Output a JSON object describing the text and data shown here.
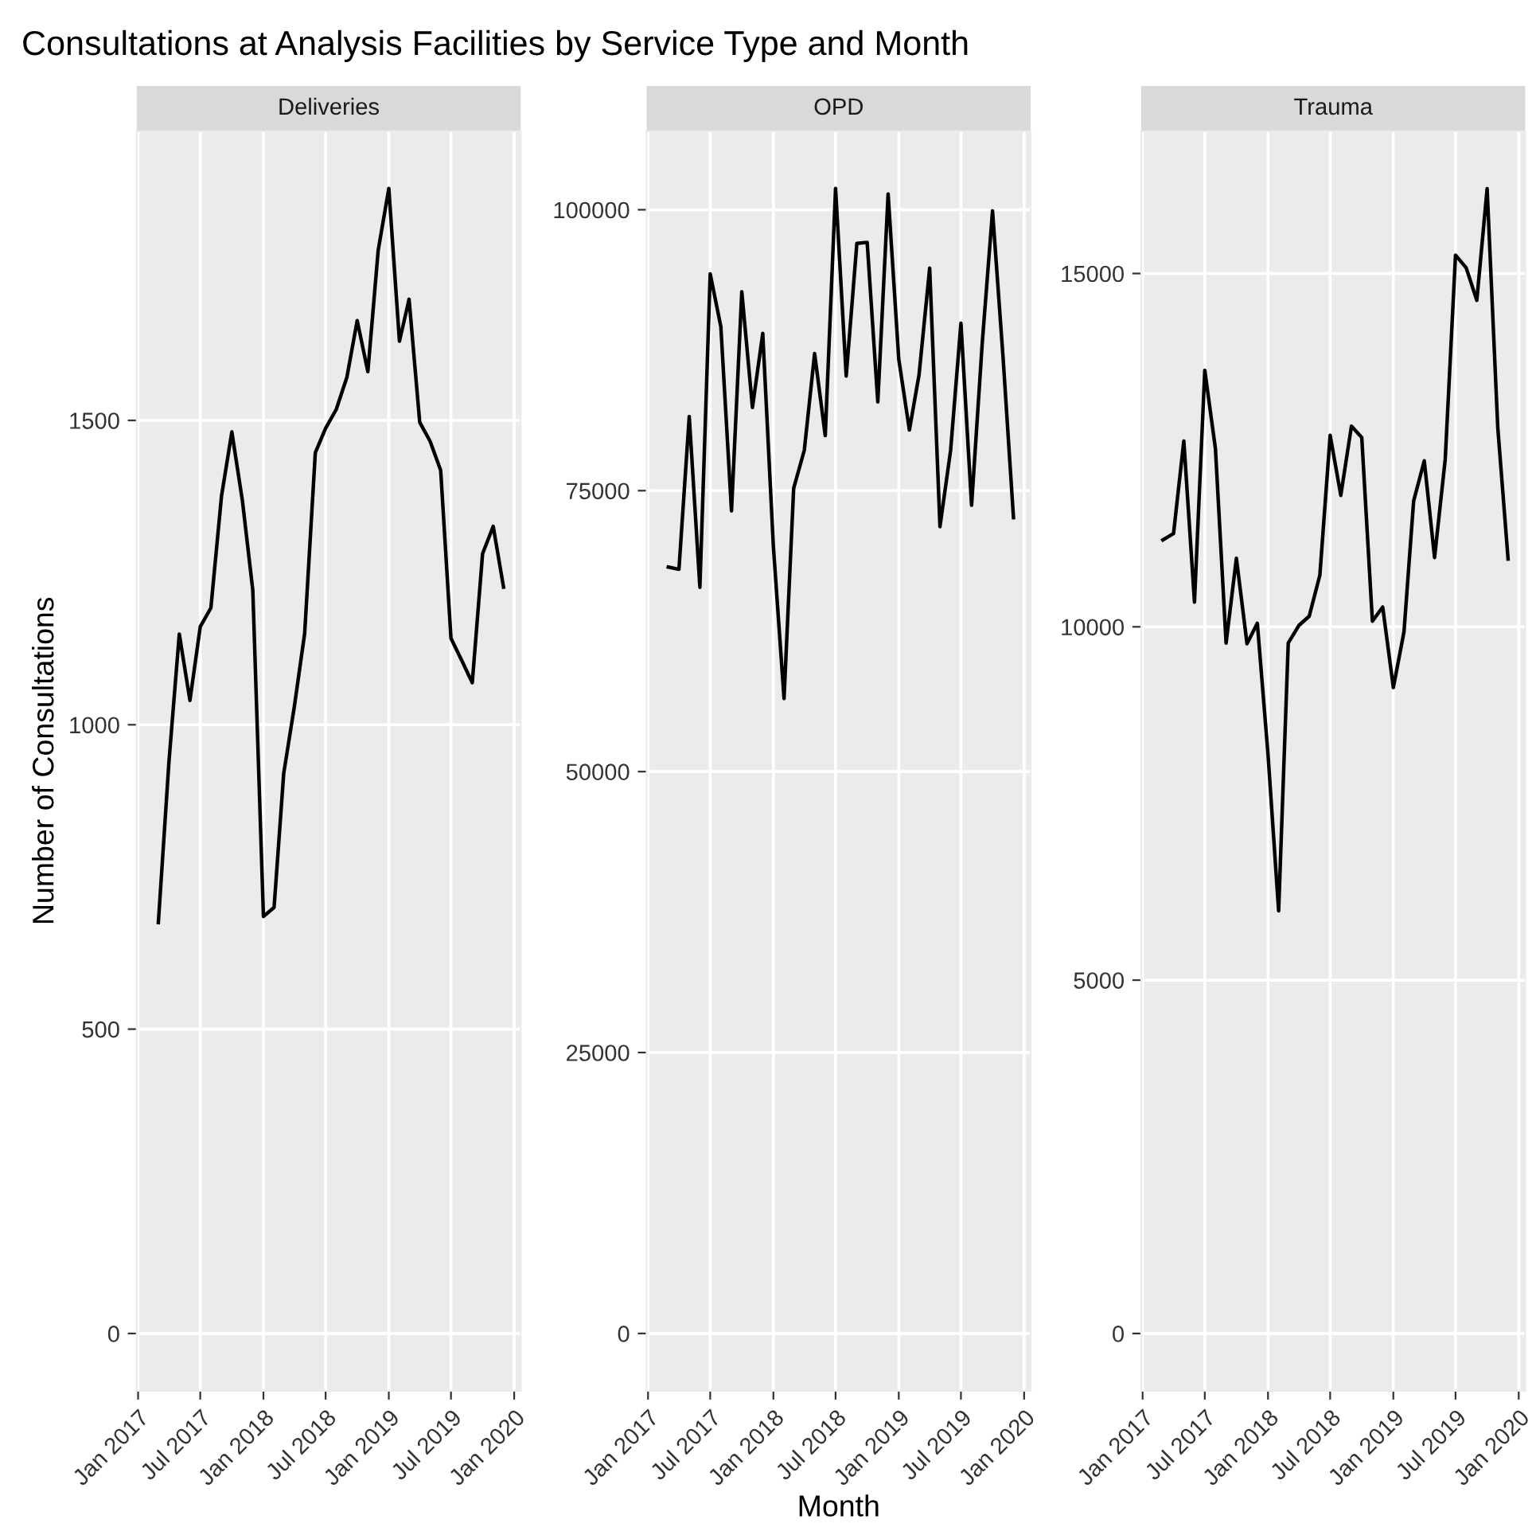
{
  "chart_data": [
    {
      "type": "line",
      "title": "Consultations at Analysis Facilities by Service Type and Month",
      "subtitle": "Deliveries",
      "ylabel": "Number of Consultations",
      "x": [
        "2017-03",
        "2017-04",
        "2017-05",
        "2017-06",
        "2017-07",
        "2017-08",
        "2017-09",
        "2017-10",
        "2017-11",
        "2017-12",
        "2018-01",
        "2018-02",
        "2018-03",
        "2018-04",
        "2018-05",
        "2018-06",
        "2018-07",
        "2018-08",
        "2018-09",
        "2018-10",
        "2018-11",
        "2018-12",
        "2019-01",
        "2019-02",
        "2019-03",
        "2019-04",
        "2019-05",
        "2019-06",
        "2019-07",
        "2019-08",
        "2019-09",
        "2019-10",
        "2019-11",
        "2019-12"
      ],
      "series": [
        {
          "color": "#000000",
          "values": [
            675,
            940,
            1149,
            1040,
            1161,
            1192,
            1376,
            1481,
            1367,
            1221,
            685,
            700,
            920,
            1030,
            1150,
            1447,
            1487,
            1518,
            1571,
            1664,
            1580,
            1779,
            1881,
            1630,
            1699,
            1497,
            1466,
            1418,
            1142,
            1106,
            1069,
            1281,
            1326,
            1226
          ]
        }
      ],
      "xlim": [
        "2016-12-28",
        "2020-01-20"
      ],
      "ylim": [
        -94,
        1975
      ],
      "yticks": [
        0,
        500,
        1000,
        1500
      ],
      "xticks": [
        {
          "value": "2017-01",
          "label": "Jan 2017"
        },
        {
          "value": "2017-07",
          "label": "Jul 2017"
        },
        {
          "value": "2018-01",
          "label": "Jan 2018"
        },
        {
          "value": "2018-07",
          "label": "Jul 2018"
        },
        {
          "value": "2019-01",
          "label": "Jan 2019"
        },
        {
          "value": "2019-07",
          "label": "Jul 2019"
        },
        {
          "value": "2020-01",
          "label": "Jan 2020"
        }
      ],
      "grid": true,
      "marker": "none",
      "line_style": "solid"
    },
    {
      "type": "line",
      "subtitle": "OPD",
      "xlabel": "Month",
      "x": [
        "2017-03",
        "2017-04",
        "2017-05",
        "2017-06",
        "2017-07",
        "2017-08",
        "2017-09",
        "2017-10",
        "2017-11",
        "2017-12",
        "2018-01",
        "2018-02",
        "2018-03",
        "2018-04",
        "2018-05",
        "2018-06",
        "2018-07",
        "2018-08",
        "2018-09",
        "2018-10",
        "2018-11",
        "2018-12",
        "2019-01",
        "2019-02",
        "2019-03",
        "2019-04",
        "2019-05",
        "2019-06",
        "2019-07",
        "2019-08",
        "2019-09",
        "2019-10",
        "2019-11",
        "2019-12"
      ],
      "series": [
        {
          "color": "#000000",
          "values": [
            68200,
            68000,
            81600,
            66400,
            94300,
            89600,
            73200,
            92700,
            82400,
            89000,
            70000,
            56500,
            75200,
            78600,
            87200,
            79900,
            101900,
            85200,
            97000,
            97100,
            82900,
            101400,
            86700,
            80400,
            85300,
            94800,
            71800,
            78600,
            89900,
            73700,
            88100,
            99900,
            86700,
            72600
          ]
        }
      ],
      "xlim": [
        "2016-12-28",
        "2020-01-20"
      ],
      "ylim": [
        -5095,
        106985
      ],
      "yticks": [
        0,
        25000,
        50000,
        75000,
        100000
      ],
      "xticks": [
        {
          "value": "2017-01",
          "label": "Jan 2017"
        },
        {
          "value": "2017-07",
          "label": "Jul 2017"
        },
        {
          "value": "2018-01",
          "label": "Jan 2018"
        },
        {
          "value": "2018-07",
          "label": "Jul 2018"
        },
        {
          "value": "2019-01",
          "label": "Jan 2019"
        },
        {
          "value": "2019-07",
          "label": "Jul 2019"
        },
        {
          "value": "2020-01",
          "label": "Jan 2020"
        }
      ],
      "grid": true,
      "marker": "none",
      "line_style": "solid"
    },
    {
      "type": "line",
      "subtitle": "Trauma",
      "x": [
        "2017-03",
        "2017-04",
        "2017-05",
        "2017-06",
        "2017-07",
        "2017-08",
        "2017-09",
        "2017-10",
        "2017-11",
        "2017-12",
        "2018-01",
        "2018-02",
        "2018-03",
        "2018-04",
        "2018-05",
        "2018-06",
        "2018-07",
        "2018-08",
        "2018-09",
        "2018-10",
        "2018-11",
        "2018-12",
        "2019-01",
        "2019-02",
        "2019-03",
        "2019-04",
        "2019-05",
        "2019-06",
        "2019-07",
        "2019-08",
        "2019-09",
        "2019-10",
        "2019-11",
        "2019-12"
      ],
      "series": [
        {
          "color": "#000000",
          "values": [
            11230,
            11320,
            12630,
            10350,
            13630,
            12520,
            9770,
            10970,
            9760,
            10050,
            8200,
            5980,
            9770,
            10020,
            10150,
            10730,
            12710,
            11860,
            12840,
            12680,
            10080,
            10280,
            9140,
            9930,
            11780,
            12350,
            10980,
            12370,
            15260,
            15080,
            14620,
            16200,
            12820,
            10960
          ]
        }
      ],
      "xlim": [
        "2016-12-28",
        "2020-01-20"
      ],
      "ylim": [
        -810,
        17013
      ],
      "yticks": [
        0,
        5000,
        10000,
        15000
      ],
      "xticks": [
        {
          "value": "2017-01",
          "label": "Jan 2017"
        },
        {
          "value": "2017-07",
          "label": "Jul 2017"
        },
        {
          "value": "2018-01",
          "label": "Jan 2018"
        },
        {
          "value": "2018-07",
          "label": "Jul 2018"
        },
        {
          "value": "2019-01",
          "label": "Jan 2019"
        },
        {
          "value": "2019-07",
          "label": "Jul 2019"
        },
        {
          "value": "2020-01",
          "label": "Jan 2020"
        }
      ],
      "grid": true,
      "marker": "none",
      "line_style": "solid"
    }
  ]
}
